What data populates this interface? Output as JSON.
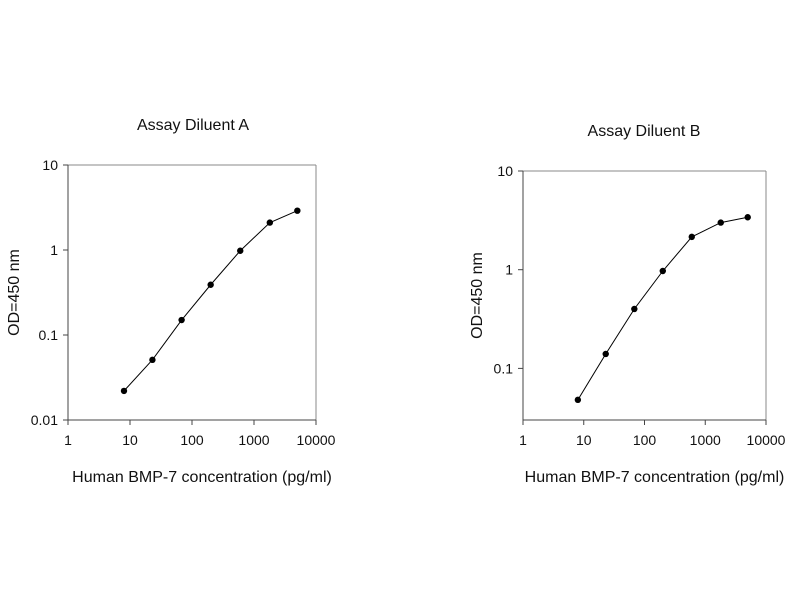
{
  "chart_data": [
    {
      "type": "line",
      "title": "Assay Diluent A",
      "xlabel": "Human BMP-7 concentration (pg/ml)",
      "ylabel": "OD=450 nm",
      "xscale": "log",
      "yscale": "log",
      "xlim": [
        1,
        10000
      ],
      "ylim": [
        0.01,
        10
      ],
      "xticks": [
        "1",
        "10",
        "100",
        "1000",
        "10000"
      ],
      "yticks": [
        "0.01",
        "0.1",
        "1",
        "10"
      ],
      "grid": false,
      "x": [
        8,
        23,
        68,
        200,
        600,
        1800,
        5000
      ],
      "y": [
        0.022,
        0.051,
        0.15,
        0.39,
        0.98,
        2.1,
        2.9
      ],
      "color": "#000000"
    },
    {
      "type": "line",
      "title": "Assay Diluent B",
      "xlabel": "Human BMP-7 concentration (pg/ml)",
      "ylabel": "OD=450 nm",
      "xscale": "log",
      "yscale": "log",
      "xlim": [
        1,
        10000
      ],
      "ylim": [
        0.03,
        10
      ],
      "xticks": [
        "1",
        "10",
        "100",
        "1000",
        "10000"
      ],
      "yticks": [
        "0.1",
        "1",
        "10"
      ],
      "grid": false,
      "x": [
        8,
        23,
        68,
        200,
        600,
        1800,
        5000
      ],
      "y": [
        0.048,
        0.14,
        0.4,
        0.97,
        2.15,
        3.0,
        3.4
      ],
      "color": "#000000"
    }
  ]
}
